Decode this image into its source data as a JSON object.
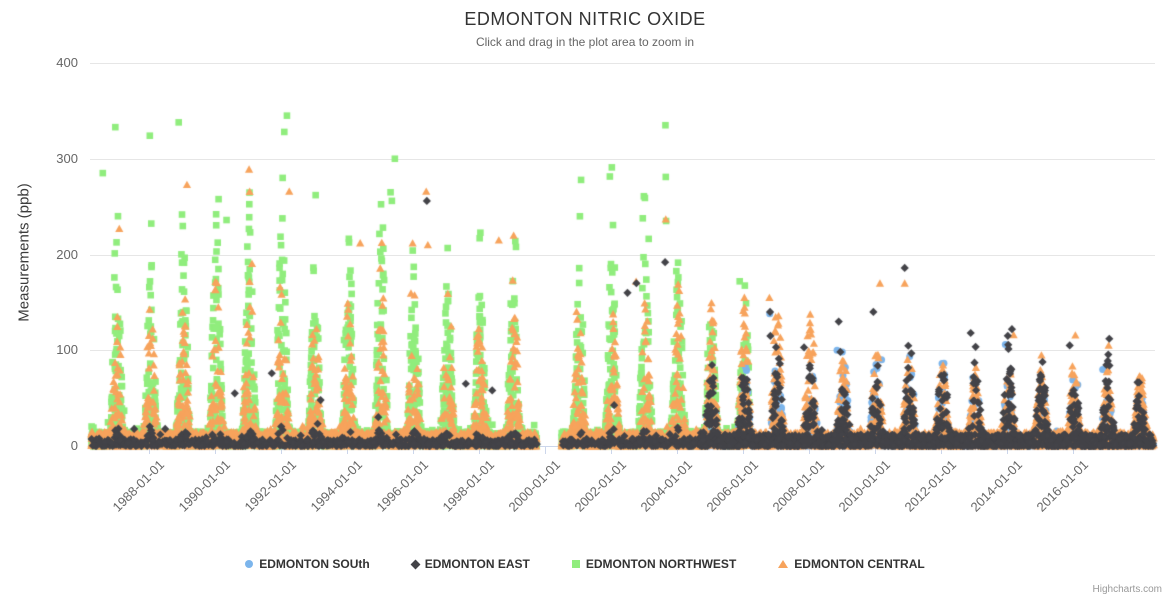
{
  "credits": "Highcharts.com",
  "chart_data": {
    "type": "scatter",
    "title": "EDMONTON NITRIC OXIDE",
    "subtitle": "Click and drag in the plot area to zoom in",
    "ylabel": "Measurements (ppb)",
    "xlabel": "",
    "ylim": [
      0,
      400
    ],
    "yticks": [
      0,
      100,
      200,
      300,
      400
    ],
    "xticks": [
      "1988-01-01",
      "1990-01-01",
      "1992-01-01",
      "1994-01-01",
      "1996-01-01",
      "1998-01-01",
      "2000-01-01",
      "2002-01-01",
      "2004-01-01",
      "2006-01-01",
      "2008-01-01",
      "2010-01-01",
      "2012-01-01",
      "2014-01-01",
      "2016-01-01"
    ],
    "x_domain_years": [
      1986.25,
      2018.45
    ],
    "data_gap_years": [
      1999.75,
      2000.5
    ],
    "grid": "horizontal",
    "legend_position": "bottom",
    "seasonality": "annual winter peaks each January, summer valleys near zero",
    "series": [
      {
        "name": "EDMONTON SOUth",
        "color": "#7cb5ec",
        "marker": "circle",
        "draw_order": 2,
        "segments": [
          {
            "seed": 31,
            "count": 1650,
            "start": 2004.7,
            "end": 2018.45,
            "base": 11,
            "sharp": 2.2,
            "conc": 2.0,
            "tail_frac": 0.05,
            "tail_mult": 1.5,
            "gap": false,
            "amp_keys": [
              [
                2004.7,
                68
              ],
              [
                2008,
                82
              ],
              [
                2011,
                72
              ],
              [
                2014,
                70
              ],
              [
                2018.4,
                62
              ]
            ]
          }
        ],
        "outliers": [
          [
            2006.81,
            138
          ],
          [
            2008.85,
            100
          ],
          [
            2010.2,
            90
          ],
          [
            2013.95,
            106
          ],
          [
            2016.9,
            80
          ]
        ]
      },
      {
        "name": "EDMONTON EAST",
        "color": "#434348",
        "marker": "diamond",
        "draw_order": 4,
        "segments": [
          {
            "seed": 21,
            "count": 950,
            "start": 1986.25,
            "end": 2004.7,
            "base": 7,
            "sharp": 1.6,
            "conc": 1.6,
            "tail_frac": 0.04,
            "tail_mult": 3.2,
            "gap": true,
            "amp_keys": [
              [
                1986.3,
                11
              ],
              [
                2004.7,
                13
              ]
            ]
          },
          {
            "seed": 22,
            "count": 2050,
            "start": 2004.7,
            "end": 2018.45,
            "base": 12,
            "sharp": 2.2,
            "conc": 1.9,
            "tail_frac": 0.06,
            "tail_mult": 1.6,
            "gap": false,
            "amp_keys": [
              [
                2004.7,
                85
              ],
              [
                2007,
                100
              ],
              [
                2009,
                95
              ],
              [
                2011,
                88
              ],
              [
                2013,
                82
              ],
              [
                2015,
                80
              ],
              [
                2018.4,
                76
              ]
            ]
          }
        ],
        "outliers": [
          [
            1990.6,
            55
          ],
          [
            1991.72,
            76
          ],
          [
            1993.2,
            48
          ],
          [
            1996.42,
            256
          ],
          [
            1997.6,
            65
          ],
          [
            1998.4,
            58
          ],
          [
            2002.5,
            160
          ],
          [
            2002.77,
            170
          ],
          [
            2003.64,
            192
          ],
          [
            2006.82,
            140
          ],
          [
            2006.83,
            115
          ],
          [
            2007.85,
            103
          ],
          [
            2008.9,
            130
          ],
          [
            2009.95,
            140
          ],
          [
            2010.9,
            186
          ],
          [
            2012.9,
            118
          ],
          [
            2014.15,
            122
          ],
          [
            2015.9,
            105
          ],
          [
            2017.1,
            112
          ]
        ]
      },
      {
        "name": "EDMONTON NORTHWEST",
        "color": "#90ed7d",
        "marker": "square",
        "draw_order": 1,
        "segments": [
          {
            "seed": 7,
            "count": 5200,
            "start": 1986.25,
            "end": 2006.2,
            "base": 15,
            "sharp": 2.3,
            "conc": 1.7,
            "tail_frac": 0.055,
            "tail_mult": 1.8,
            "gap": true,
            "amp_keys": [
              [
                1986.3,
                205
              ],
              [
                1989,
                185
              ],
              [
                1992,
                235
              ],
              [
                1994,
                200
              ],
              [
                1995,
                215
              ],
              [
                1997,
                180
              ],
              [
                1999,
                185
              ],
              [
                2000.5,
                190
              ],
              [
                2003,
                200
              ],
              [
                2004.5,
                165
              ],
              [
                2006.2,
                140
              ]
            ]
          }
        ],
        "outliers": [
          [
            1986.6,
            285
          ],
          [
            1986.98,
            333
          ],
          [
            1987.06,
            240
          ],
          [
            1988.9,
            338
          ],
          [
            1990.35,
            236
          ],
          [
            1992.05,
            280
          ],
          [
            1992.1,
            328
          ],
          [
            1992.18,
            345
          ],
          [
            1993.05,
            262
          ],
          [
            1995.32,
            265
          ],
          [
            1995.36,
            256
          ],
          [
            1995.45,
            300
          ],
          [
            1998.02,
            217
          ],
          [
            1999.1,
            214
          ],
          [
            2002.0,
            190
          ],
          [
            2003.65,
            335
          ],
          [
            2003.66,
            281
          ],
          [
            2003.67,
            235
          ],
          [
            2005.9,
            172
          ]
        ]
      },
      {
        "name": "EDMONTON CENTRAL",
        "color": "#f7a35c",
        "marker": "triangle",
        "draw_order": 3,
        "segments": [
          {
            "seed": 13,
            "count": 6500,
            "start": 1986.25,
            "end": 2018.45,
            "base": 15,
            "sharp": 2.1,
            "conc": 1.8,
            "tail_frac": 0.05,
            "tail_mult": 1.6,
            "gap": true,
            "amp_keys": [
              [
                1986.3,
                155
              ],
              [
                1990,
                145
              ],
              [
                1992,
                160
              ],
              [
                1996,
                150
              ],
              [
                1999,
                140
              ],
              [
                2001,
                145
              ],
              [
                2004,
                135
              ],
              [
                2006,
                125
              ],
              [
                2008,
                115
              ],
              [
                2010,
                100
              ],
              [
                2012,
                82
              ],
              [
                2014,
                78
              ],
              [
                2016,
                72
              ],
              [
                2018.4,
                70
              ]
            ]
          }
        ],
        "outliers": [
          [
            1987.1,
            227
          ],
          [
            1989.15,
            273
          ],
          [
            1992.25,
            266
          ],
          [
            1994.4,
            212
          ],
          [
            1996.4,
            266
          ],
          [
            1996.45,
            210
          ],
          [
            1998.6,
            215
          ],
          [
            1999.05,
            220
          ],
          [
            2002.76,
            172
          ],
          [
            2003.66,
            237
          ],
          [
            2006.8,
            155
          ],
          [
            2010.15,
            170
          ],
          [
            2010.9,
            170
          ],
          [
            2014.2,
            116
          ],
          [
            2017.08,
            105
          ]
        ]
      }
    ]
  }
}
